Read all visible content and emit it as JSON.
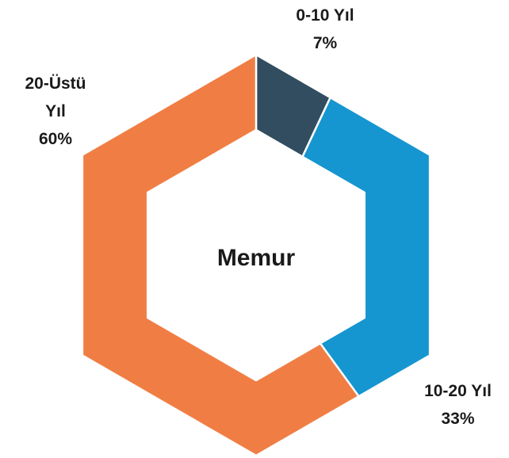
{
  "chart_data": {
    "type": "donut",
    "center_label": "Memur",
    "categories": [
      "0-10 Yıl",
      "10-20 Yıl",
      "20-Üstü Yıl"
    ],
    "values": [
      7,
      33,
      60
    ],
    "value_labels": [
      "7%",
      "33%",
      "60%"
    ],
    "colors": [
      "#324d60",
      "#1596d0",
      "#f07e44"
    ]
  }
}
